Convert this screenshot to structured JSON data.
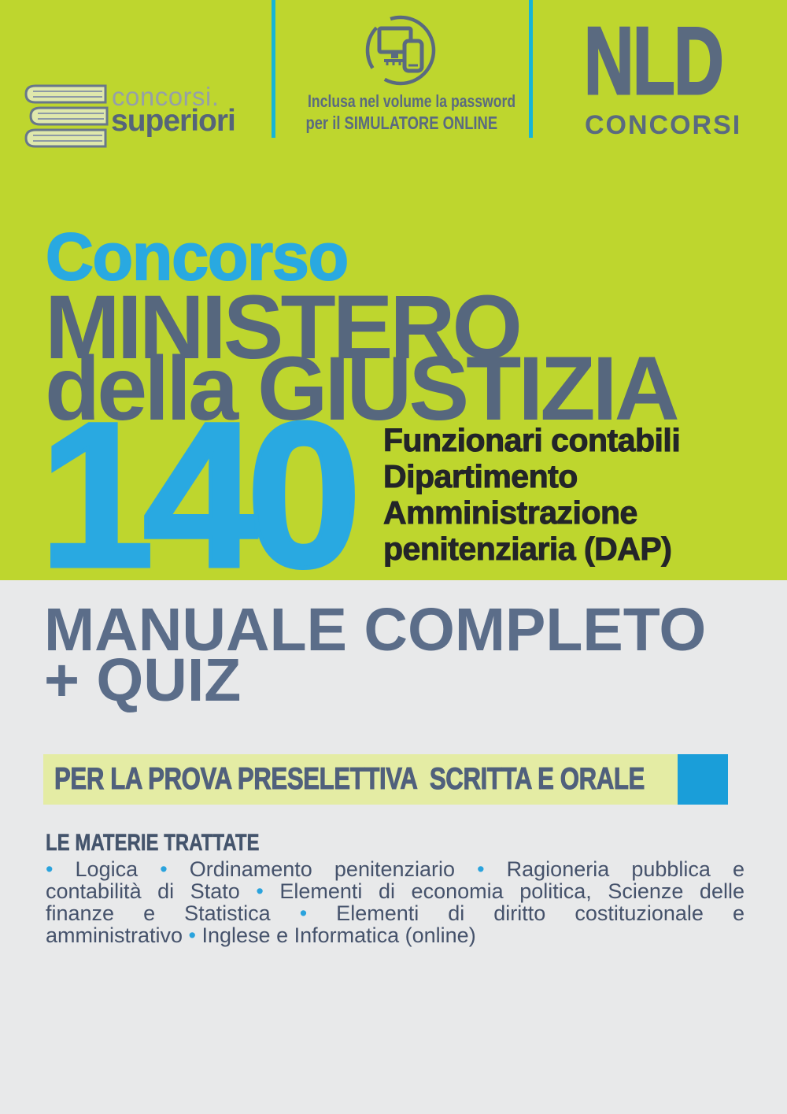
{
  "colors": {
    "green": "#bed62e",
    "gray": "#e8e9ea",
    "accent_blue": "#29a9e1",
    "divider_teal": "#16b5d8",
    "slate": "#5a6a80",
    "banner_yellow": "#e4eca4",
    "banner_square_blue": "#1a9ed9",
    "bullet_blue": "#2aa3dd"
  },
  "header": {
    "left_logo": {
      "icon": "books-stack-icon",
      "top_text": "concorsi.",
      "bottom_text": "superiori"
    },
    "simulator": {
      "icon": "monitor-phone-icon",
      "line1": "Inclusa nel volume la password",
      "line2": "per il SIMULATORE ONLINE"
    },
    "nld_logo": {
      "acronym": "NLD",
      "word": "CONCORSI"
    }
  },
  "title": {
    "kicker": "Concorso",
    "main_line1": "MINISTERO",
    "main_line2": "della GIUSTIZIA",
    "number": "140",
    "role_lines": [
      "Funzionari contabili",
      "Dipartimento",
      "Amministrazione",
      "penitenziaria (DAP)"
    ]
  },
  "product": {
    "line1": "MANUALE COMPLETO",
    "line2": "+ QUIZ"
  },
  "banner": {
    "text": "PER LA PROVA PRESELETTIVA  SCRITTA E ORALE"
  },
  "subjects": {
    "heading": "LE MATERIE TRATTATE",
    "lines": [
      "• Logica • Ordinamento penitenziario • Ragioneria pubblica e",
      "contabilità di Stato • Elementi di economia politica, Scienze delle",
      "finanze e Statistica • Elementi di diritto costituzionale e",
      "amministrativo • Inglese e Informatica (online)"
    ]
  }
}
